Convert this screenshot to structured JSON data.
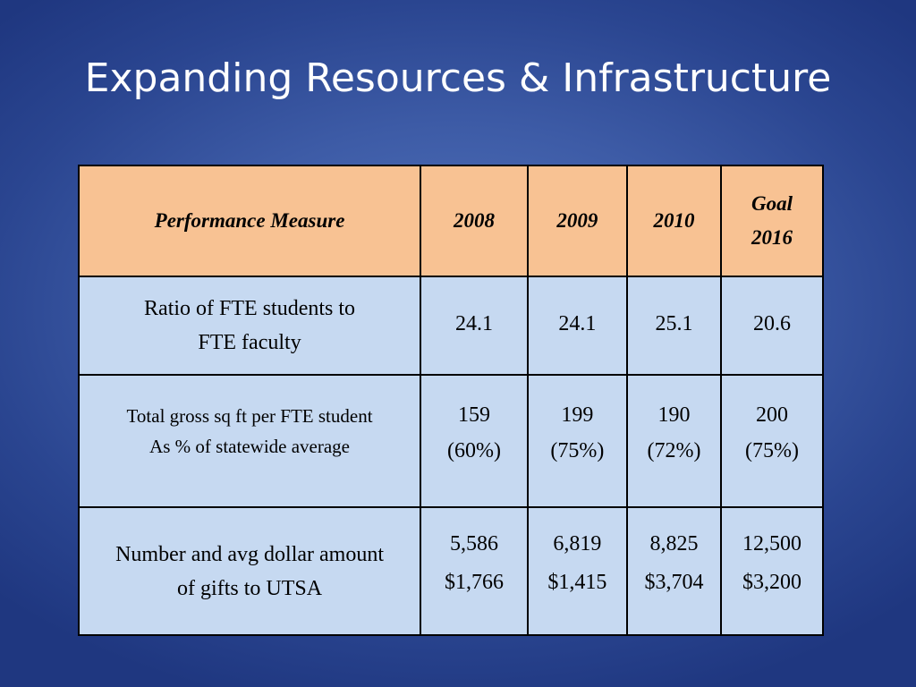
{
  "title": "Expanding Resources & Infrastructure",
  "table": {
    "headers": [
      "Performance Measure",
      "2008",
      "2009",
      "2010"
    ],
    "goal_header": [
      "Goal",
      "2016"
    ],
    "rows": [
      {
        "measure": [
          "Ratio of FTE students to",
          "FTE faculty"
        ],
        "values": [
          [
            "24.1"
          ],
          [
            "24.1"
          ],
          [
            "25.1"
          ],
          [
            "20.6"
          ]
        ]
      },
      {
        "measure": [
          "Total gross sq ft per FTE student",
          "As % of statewide average"
        ],
        "values": [
          [
            "159",
            "(60%)"
          ],
          [
            "199",
            "(75%)"
          ],
          [
            "190",
            "(72%)"
          ],
          [
            "200",
            "(75%)"
          ]
        ]
      },
      {
        "measure": [
          "Number and avg dollar amount",
          "of gifts to UTSA"
        ],
        "values": [
          [
            "5,586",
            "$1,766"
          ],
          [
            "6,819",
            "$1,415"
          ],
          [
            "8,825",
            "$3,704"
          ],
          [
            "12,500",
            "$3,200"
          ]
        ]
      }
    ]
  },
  "colors": {
    "header_fill": "#f8c293",
    "cell_fill": "#c6d9f1",
    "background": "#3d5ba6"
  }
}
